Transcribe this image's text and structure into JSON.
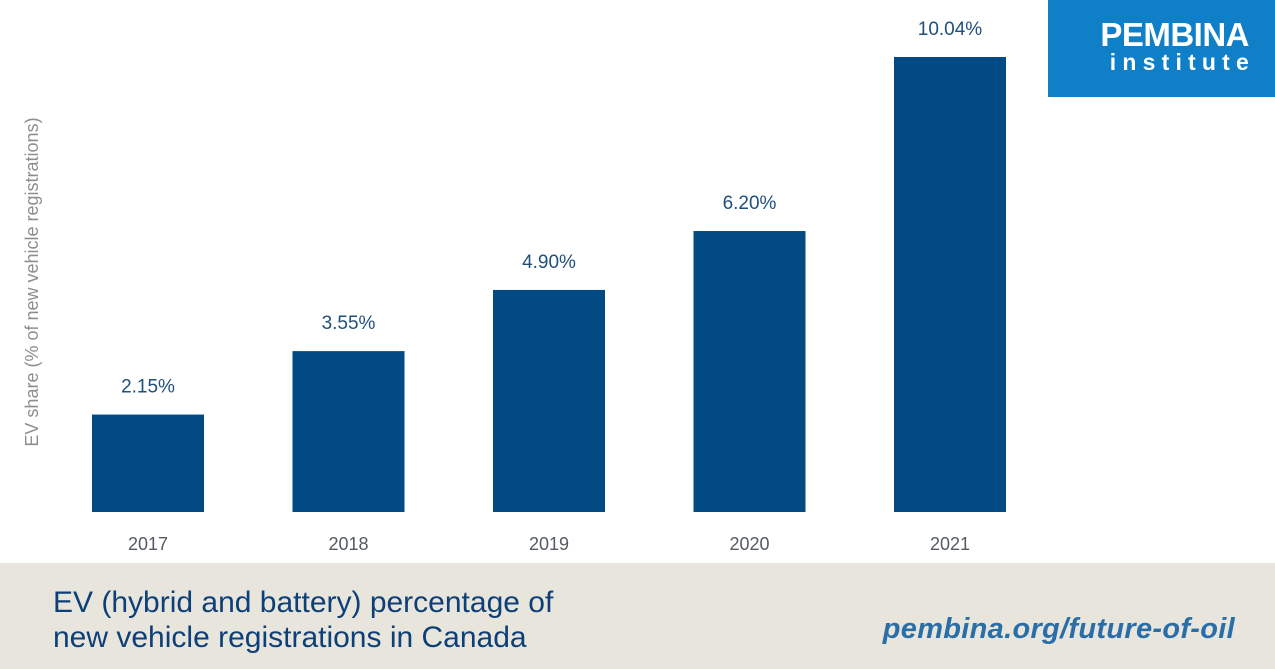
{
  "chart_data": {
    "type": "bar",
    "categories": [
      "2017",
      "2018",
      "2019",
      "2020",
      "2021"
    ],
    "values": [
      2.15,
      3.55,
      4.9,
      6.2,
      10.04
    ],
    "value_labels": [
      "2.15%",
      "3.55%",
      "4.90%",
      "6.20%",
      "10.04%"
    ],
    "ylabel": "EV share (% of new vehicle registrations)",
    "ylim": [
      0,
      10.04
    ],
    "grid": false,
    "bar_color": "#014a84"
  },
  "brand": {
    "line1": "PEMBINA",
    "line2": "institute",
    "color": "#0f7fc7"
  },
  "footer": {
    "title": "EV (hybrid and battery) percentage of\nnew vehicle registrations in Canada",
    "url": "pembina.org/future-of-oil",
    "background": "#e8e5dd"
  }
}
